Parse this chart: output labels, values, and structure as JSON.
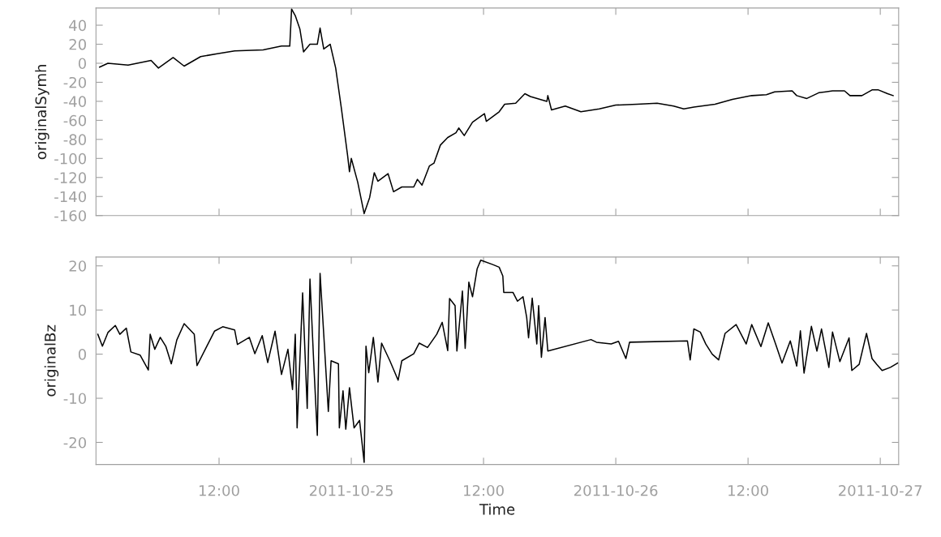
{
  "chart_data": [
    {
      "type": "line",
      "ylabel": "originalSymh",
      "tick_labels": "y",
      "xlim": [
        "2011-10-24T00:50",
        "2011-10-27T01:40"
      ],
      "xticks": [
        {
          "value": "2011-10-24T12:00",
          "label": null
        },
        {
          "value": "2011-10-25T00:00",
          "label": null
        },
        {
          "value": "2011-10-25T12:00",
          "label": null
        },
        {
          "value": "2011-10-26T00:00",
          "label": null
        },
        {
          "value": "2011-10-26T12:00",
          "label": null
        },
        {
          "value": "2011-10-27T00:00",
          "label": null
        }
      ],
      "ylim": [
        -160,
        58
      ],
      "yticks": [
        -160,
        -140,
        -120,
        -100,
        -80,
        -60,
        -40,
        -20,
        0,
        20,
        40
      ],
      "x": [
        "2011-10-24T01:10",
        "2011-10-24T01:55",
        "2011-10-24T03:45",
        "2011-10-24T05:50",
        "2011-10-24T06:30",
        "2011-10-24T07:50",
        "2011-10-24T08:50",
        "2011-10-24T10:20",
        "2011-10-24T11:50",
        "2011-10-24T13:25",
        "2011-10-24T16:00",
        "2011-10-24T17:40",
        "2011-10-24T18:25",
        "2011-10-24T18:35",
        "2011-10-24T18:55",
        "2011-10-24T19:20",
        "2011-10-24T19:40",
        "2011-10-24T20:15",
        "2011-10-24T20:55",
        "2011-10-24T21:10",
        "2011-10-24T21:30",
        "2011-10-24T22:05",
        "2011-10-24T22:35",
        "2011-10-24T23:05",
        "2011-10-24T23:40",
        "2011-10-24T23:50",
        "2011-10-25T00:00",
        "2011-10-25T00:35",
        "2011-10-25T01:10",
        "2011-10-25T01:40",
        "2011-10-25T02:05",
        "2011-10-25T02:25",
        "2011-10-25T03:20",
        "2011-10-25T03:50",
        "2011-10-25T04:35",
        "2011-10-25T05:40",
        "2011-10-25T06:00",
        "2011-10-25T06:25",
        "2011-10-25T07:05",
        "2011-10-25T07:30",
        "2011-10-25T08:05",
        "2011-10-25T08:45",
        "2011-10-25T09:30",
        "2011-10-25T09:45",
        "2011-10-25T10:15",
        "2011-10-25T11:00",
        "2011-10-25T12:05",
        "2011-10-25T12:15",
        "2011-10-25T13:25",
        "2011-10-25T13:55",
        "2011-10-25T14:55",
        "2011-10-25T15:45",
        "2011-10-25T16:15",
        "2011-10-25T17:45",
        "2011-10-25T17:50",
        "2011-10-25T18:10",
        "2011-10-25T19:25",
        "2011-10-25T20:50",
        "2011-10-25T22:30",
        "2011-10-26T00:00",
        "2011-10-26T01:55",
        "2011-10-26T03:45",
        "2011-10-26T05:15",
        "2011-10-26T06:10",
        "2011-10-26T07:05",
        "2011-10-26T09:00",
        "2011-10-26T10:35",
        "2011-10-26T12:20",
        "2011-10-26T13:40",
        "2011-10-26T14:25",
        "2011-10-26T16:00",
        "2011-10-26T16:25",
        "2011-10-26T17:20",
        "2011-10-26T18:25",
        "2011-10-26T19:40",
        "2011-10-26T20:45",
        "2011-10-26T21:15",
        "2011-10-26T22:20",
        "2011-10-26T23:15",
        "2011-10-26T23:50",
        "2011-10-27T00:40",
        "2011-10-27T01:10"
      ],
      "series": [
        {
          "color": "#000000",
          "values": [
            -4,
            0,
            -2,
            3,
            -5,
            6,
            -3,
            7,
            10,
            13,
            14,
            18,
            18,
            57,
            50,
            36,
            12,
            20,
            20,
            37,
            15,
            20,
            -5,
            -46,
            -97,
            -114,
            -100,
            -125,
            -158,
            -141,
            -115,
            -124,
            -116,
            -135,
            -130,
            -130,
            -122,
            -128,
            -108,
            -105,
            -86,
            -78,
            -73,
            -68,
            -76,
            -62,
            -53,
            -61,
            -51,
            -43,
            -42,
            -32,
            -35,
            -40,
            -34,
            -49,
            -45,
            -51,
            -48,
            -44,
            -43,
            -42,
            -45,
            -48,
            -46,
            -43,
            -38,
            -34,
            -33,
            -30,
            -29,
            -34,
            -37,
            -31,
            -29,
            -29,
            -34,
            -34,
            -28,
            -28,
            -32,
            -34
          ]
        }
      ]
    },
    {
      "type": "line",
      "ylabel": "originalBz",
      "xlabel": "Time",
      "xlim": [
        "2011-10-24T00:50",
        "2011-10-27T01:40"
      ],
      "xticks": [
        {
          "value": "2011-10-24T12:00",
          "label": "12:00"
        },
        {
          "value": "2011-10-25T00:00",
          "label": "2011-10-25"
        },
        {
          "value": "2011-10-25T12:00",
          "label": "12:00"
        },
        {
          "value": "2011-10-26T00:00",
          "label": "2011-10-26"
        },
        {
          "value": "2011-10-26T12:00",
          "label": "12:00"
        },
        {
          "value": "2011-10-27T00:00",
          "label": "2011-10-27"
        }
      ],
      "ylim": [
        -25,
        22
      ],
      "yticks": [
        -20,
        -10,
        0,
        10,
        20
      ],
      "x": [
        "2011-10-24T01:00",
        "2011-10-24T01:25",
        "2011-10-24T01:55",
        "2011-10-24T02:35",
        "2011-10-24T03:00",
        "2011-10-24T03:35",
        "2011-10-24T04:00",
        "2011-10-24T04:50",
        "2011-10-24T05:35",
        "2011-10-24T05:45",
        "2011-10-24T06:10",
        "2011-10-24T06:40",
        "2011-10-24T07:10",
        "2011-10-24T07:40",
        "2011-10-24T08:10",
        "2011-10-24T08:50",
        "2011-10-24T09:45",
        "2011-10-24T10:00",
        "2011-10-24T10:50",
        "2011-10-24T11:35",
        "2011-10-24T12:20",
        "2011-10-24T13:25",
        "2011-10-24T13:40",
        "2011-10-24T14:45",
        "2011-10-24T15:15",
        "2011-10-24T15:55",
        "2011-10-24T16:25",
        "2011-10-24T17:05",
        "2011-10-24T17:40",
        "2011-10-24T18:15",
        "2011-10-24T18:40",
        "2011-10-24T18:55",
        "2011-10-24T19:05",
        "2011-10-24T19:35",
        "2011-10-24T20:00",
        "2011-10-24T20:15",
        "2011-10-24T20:35",
        "2011-10-24T20:55",
        "2011-10-24T21:10",
        "2011-10-24T21:30",
        "2011-10-24T21:55",
        "2011-10-24T22:10",
        "2011-10-24T22:50",
        "2011-10-24T22:55",
        "2011-10-24T23:15",
        "2011-10-24T23:30",
        "2011-10-24T23:50",
        "2011-10-25T00:15",
        "2011-10-25T00:45",
        "2011-10-25T01:10",
        "2011-10-25T01:20",
        "2011-10-25T01:35",
        "2011-10-25T02:00",
        "2011-10-25T02:25",
        "2011-10-25T02:45",
        "2011-10-25T03:30",
        "2011-10-25T04:15",
        "2011-10-25T04:35",
        "2011-10-25T05:40",
        "2011-10-25T06:10",
        "2011-10-25T06:55",
        "2011-10-25T07:45",
        "2011-10-25T08:15",
        "2011-10-25T08:45",
        "2011-10-25T08:55",
        "2011-10-25T09:25",
        "2011-10-25T09:35",
        "2011-10-25T10:05",
        "2011-10-25T10:20",
        "2011-10-25T10:40",
        "2011-10-25T11:00",
        "2011-10-25T11:25",
        "2011-10-25T11:45",
        "2011-10-25T12:50",
        "2011-10-25T13:25",
        "2011-10-25T13:45",
        "2011-10-25T13:50",
        "2011-10-25T14:40",
        "2011-10-25T15:05",
        "2011-10-25T15:35",
        "2011-10-25T15:55",
        "2011-10-25T16:05",
        "2011-10-25T16:25",
        "2011-10-25T16:50",
        "2011-10-25T17:00",
        "2011-10-25T17:15",
        "2011-10-25T17:35",
        "2011-10-25T17:50",
        "2011-10-25T21:45",
        "2011-10-25T22:15",
        "2011-10-25T23:35",
        "2011-10-26T00:15",
        "2011-10-26T00:55",
        "2011-10-26T01:15",
        "2011-10-26T06:30",
        "2011-10-26T06:45",
        "2011-10-26T07:05",
        "2011-10-26T07:40",
        "2011-10-26T08:10",
        "2011-10-26T08:45",
        "2011-10-26T09:20",
        "2011-10-26T09:55",
        "2011-10-26T10:55",
        "2011-10-26T11:50",
        "2011-10-26T12:20",
        "2011-10-26T13:10",
        "2011-10-26T13:50",
        "2011-10-26T14:30",
        "2011-10-26T15:05",
        "2011-10-26T15:50",
        "2011-10-26T16:25",
        "2011-10-26T16:45",
        "2011-10-26T17:05",
        "2011-10-26T17:45",
        "2011-10-26T18:15",
        "2011-10-26T18:40",
        "2011-10-26T19:20",
        "2011-10-26T19:40",
        "2011-10-26T20:20",
        "2011-10-26T21:10",
        "2011-10-26T21:25",
        "2011-10-26T22:05",
        "2011-10-26T22:45",
        "2011-10-26T23:15",
        "2011-10-26T23:40",
        "2011-10-27T00:10",
        "2011-10-27T00:55",
        "2011-10-27T01:35"
      ],
      "series": [
        {
          "color": "#000000",
          "values": [
            4.5,
            1.8,
            4.9,
            6.5,
            4.5,
            5.9,
            0.5,
            -0.2,
            -3.6,
            4.5,
            1.1,
            3.8,
            1.8,
            -2.2,
            3.2,
            6.9,
            4.5,
            -2.6,
            1.5,
            5.2,
            6.2,
            5.5,
            2.2,
            3.8,
            0.1,
            4.2,
            -1.9,
            5.2,
            -4.6,
            1.1,
            -8,
            4.5,
            -16.7,
            13.9,
            -12.3,
            17,
            -1.5,
            -18.4,
            18.3,
            4.5,
            -13,
            -1.5,
            -2.2,
            -16.7,
            -8.3,
            -17,
            -7.6,
            -16.7,
            -15,
            -24.5,
            1.8,
            -4.2,
            3.8,
            -6.3,
            2.5,
            -1.5,
            -5.9,
            -1.5,
            0.1,
            2.5,
            1.5,
            4.5,
            7.2,
            0.8,
            12.6,
            11,
            0.7,
            14.3,
            1.3,
            16.3,
            13,
            19.3,
            21.3,
            20.3,
            19.7,
            17.7,
            14,
            14,
            12,
            13,
            8.3,
            3.7,
            12.7,
            2.3,
            11,
            -0.7,
            8.3,
            0.7,
            3.3,
            2.7,
            2.3,
            2.9,
            -1,
            2.7,
            3,
            -1.3,
            5.7,
            5,
            2.3,
            0,
            -1.3,
            4.7,
            6.7,
            2.3,
            6.7,
            1.7,
            7.1,
            2.3,
            -2,
            3,
            -2.7,
            5.3,
            -4.3,
            6.3,
            0.7,
            5.7,
            -3,
            5,
            -1.7,
            3.7,
            -3.7,
            -2.3,
            4.7,
            -1,
            -2.3,
            -3.7,
            -3,
            -2
          ]
        }
      ]
    }
  ]
}
